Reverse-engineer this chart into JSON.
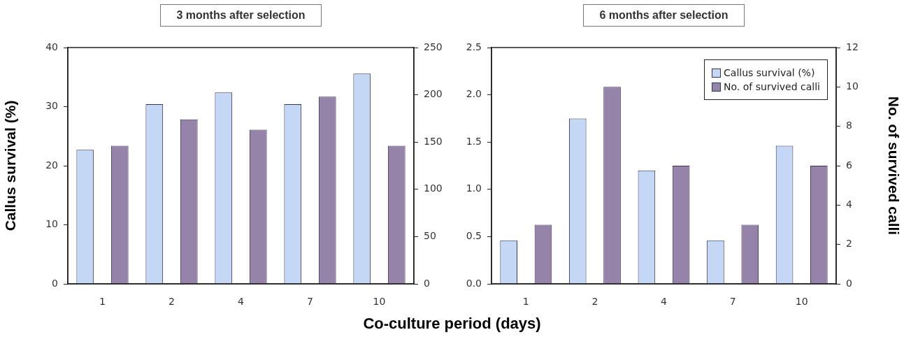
{
  "chart_data": [
    {
      "type": "bar",
      "title": "3 months after selection",
      "ylabel": "Callus survival (%)",
      "xlabel": "Co-culture period (days)",
      "categories": [
        "1",
        "2",
        "4",
        "7",
        "10"
      ],
      "series": [
        {
          "color": "#c4d8f6",
          "values": [
            22.7,
            30.4,
            32.4,
            30.4,
            35.6
          ]
        },
        {
          "color": "#9683aa",
          "values": [
            146,
            174,
            163,
            198,
            146
          ],
          "axis": "y2"
        }
      ],
      "ylim": [
        0,
        40
      ],
      "yticks": [
        0,
        10,
        20,
        30,
        40
      ],
      "y2lim": [
        0,
        250
      ],
      "y2ticks": [
        0,
        50,
        100,
        150,
        200,
        250
      ]
    },
    {
      "type": "bar",
      "title": "6 months after selection",
      "y2label": "No. of survived calli",
      "categories": [
        "1",
        "2",
        "4",
        "7",
        "10"
      ],
      "series": [
        {
          "name": "Callus survival  (%)",
          "color": "#c4d8f6",
          "values": [
            0.46,
            1.75,
            1.2,
            0.46,
            1.46
          ]
        },
        {
          "name": "No. of survived calli",
          "color": "#9683aa",
          "values": [
            3,
            10,
            6,
            3,
            6
          ],
          "axis": "y2"
        }
      ],
      "ylim": [
        0,
        2.5
      ],
      "yticks": [
        {
          "value": 0,
          "label": "0.0"
        },
        {
          "value": 0.5,
          "label": "0.5"
        },
        {
          "value": 1,
          "label": "1.0"
        },
        {
          "value": 1.5,
          "label": "1.5"
        },
        {
          "value": 2,
          "label": "2.0"
        },
        {
          "value": 2.5,
          "label": "2.5"
        }
      ],
      "y2lim": [
        0,
        12
      ],
      "y2ticks": [
        0,
        2,
        4,
        6,
        8,
        10,
        12
      ],
      "legend": "top right"
    }
  ]
}
